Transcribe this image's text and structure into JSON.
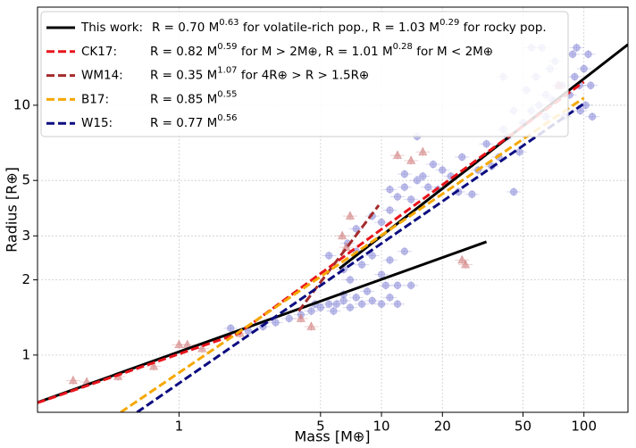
{
  "chart_data": {
    "type": "scatter",
    "xlabel": "Mass [M⊕]",
    "ylabel": "Radius [R⊕]",
    "xscale": "log",
    "yscale": "log",
    "xlim": [
      0.2,
      165
    ],
    "ylim": [
      0.59,
      24.7
    ],
    "xticks": [
      1,
      5,
      10,
      20,
      50,
      100
    ],
    "yticks": [
      1,
      2,
      3,
      5,
      10
    ],
    "grid": true,
    "legend": "upper left",
    "points": [
      {
        "marker": "circle",
        "color": "#8a8ad8",
        "x": [
          1.8,
          2.2,
          2.6,
          3,
          3.5,
          4,
          4.5,
          5,
          5.5,
          6,
          6.5,
          7,
          7.5,
          8,
          9,
          10,
          11,
          12,
          8.5,
          6.5,
          5.8,
          4.7,
          10.5,
          12,
          14,
          7,
          6.5,
          8,
          10,
          13,
          11,
          9,
          7.5,
          5.5,
          6.8,
          7.5,
          9,
          10,
          11,
          12,
          13,
          14,
          15,
          16,
          17,
          18,
          19,
          20,
          22,
          24,
          13,
          11,
          15,
          25,
          28,
          30,
          33,
          35,
          38,
          40,
          42,
          45,
          48,
          50,
          55,
          60,
          65,
          70,
          75,
          80,
          85,
          90,
          95,
          100,
          102,
          105,
          108,
          45,
          52,
          58,
          62,
          68,
          72,
          78,
          88,
          96,
          110,
          55,
          65,
          40,
          92
        ],
        "values": [
          1.28,
          1.25,
          1.3,
          1.35,
          1.4,
          1.45,
          1.5,
          1.55,
          1.6,
          1.6,
          1.65,
          1.55,
          1.7,
          1.6,
          1.65,
          1.6,
          1.7,
          1.6,
          1.8,
          1.75,
          1.5,
          1.6,
          1.9,
          1.9,
          1.9,
          2.0,
          2.2,
          2.3,
          2.1,
          2.6,
          2.4,
          2.5,
          2.6,
          2.5,
          2.8,
          3.2,
          3.6,
          3.4,
          3.8,
          4.3,
          4.7,
          4.2,
          5.0,
          5.2,
          4.7,
          5.8,
          4.6,
          5.5,
          5.2,
          4.5,
          5.3,
          4.6,
          7.5,
          6.2,
          4.4,
          5.5,
          7.0,
          5.7,
          6.2,
          8.0,
          7.5,
          4.5,
          6.5,
          8.5,
          9.5,
          10,
          11,
          10.5,
          12,
          9,
          11,
          13,
          12,
          14,
          10,
          16,
          12,
          9.5,
          11.5,
          13,
          17,
          14,
          15,
          12,
          16,
          9.5,
          9,
          17,
          9,
          13,
          17
        ]
      },
      {
        "marker": "triangle",
        "color": "#d07a7a",
        "x": [
          0.3,
          0.35,
          0.5,
          0.75,
          1.0,
          1.1,
          1.3,
          2,
          4,
          4.5,
          7,
          6.7,
          6.4,
          12,
          14,
          16,
          26,
          75,
          25
        ],
        "values": [
          0.79,
          0.78,
          0.82,
          0.9,
          1.1,
          1.1,
          1.06,
          1.22,
          1.4,
          1.3,
          3.6,
          2.7,
          3.0,
          6.3,
          6.0,
          6.5,
          2.3,
          12,
          2.4
        ]
      }
    ],
    "series": [
      {
        "name": "This work:",
        "color": "#000000",
        "dash": false,
        "formula": [
          {
            "text": "R = 0.70 M"
          },
          {
            "sup": "0.63"
          },
          {
            "text": " for volatile-rich pop.,   R = 1.03 M"
          },
          {
            "sup": "0.29"
          },
          {
            "text": " for rocky pop."
          }
        ],
        "x": [
          0.2,
          33,
          null,
          6.2,
          165
        ],
        "values": [
          0.646,
          2.84,
          null,
          2.22,
          17.5
        ]
      },
      {
        "name": "CK17:",
        "color": "#e8141c",
        "dash": true,
        "formula": [
          {
            "text": "R = 0.82 M"
          },
          {
            "sup": "0.59"
          },
          {
            "text": " for M > 2M⊕,   R = 1.01 M"
          },
          {
            "sup": "0.28"
          },
          {
            "text": " for M < 2M⊕"
          }
        ],
        "x": [
          0.2,
          2,
          2,
          100
        ],
        "values": [
          0.644,
          1.226,
          1.234,
          12.4
        ]
      },
      {
        "name": "WM14:",
        "color": "#a52a2a",
        "dash": true,
        "formula": [
          {
            "text": "R = 0.35 M"
          },
          {
            "sup": "1.07"
          },
          {
            "text": " for 4R⊕ > R > 1.5R⊕"
          }
        ],
        "x": [
          3.9,
          9.7
        ],
        "values": [
          1.5,
          3.98
        ]
      },
      {
        "name": "B17:",
        "color": "#f5a800",
        "dash": true,
        "formula": [
          {
            "text": "R = 0.85 M"
          },
          {
            "sup": "0.55"
          }
        ],
        "x": [
          0.515,
          100
        ],
        "values": [
          0.59,
          10.7
        ]
      },
      {
        "name": "W15:",
        "color": "#0c0c80",
        "dash": true,
        "formula": [
          {
            "text": "R = 0.77 M"
          },
          {
            "sup": "0.56"
          }
        ],
        "x": [
          0.62,
          100
        ],
        "values": [
          0.59,
          10.15
        ]
      }
    ]
  }
}
